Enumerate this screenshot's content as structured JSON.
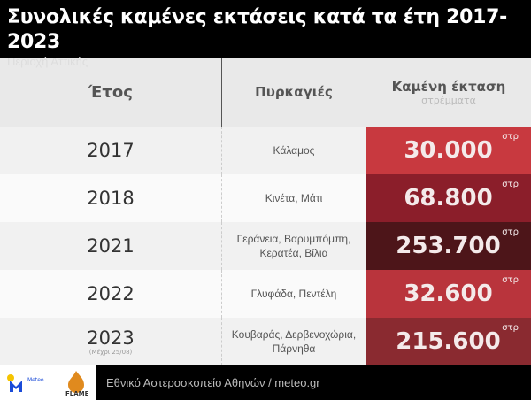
{
  "title": "Συνολικές καμένες εκτάσεις κατά τα έτη 2017-2023",
  "subtitle": "Περιοχή Αττικής",
  "headers": {
    "year": "Έτος",
    "fires": "Πυρκαγιές",
    "area": "Καμένη έκταση",
    "area_unit": "στρέμματα"
  },
  "unit_short": "στρ",
  "rows": [
    {
      "year": "2017",
      "note": "",
      "fires": "Κάλαμος",
      "area": "30.000",
      "color": "#c8393f"
    },
    {
      "year": "2018",
      "note": "",
      "fires": "Κινέτα, Μάτι",
      "area": "68.800",
      "color": "#8b1e2a"
    },
    {
      "year": "2021",
      "note": "",
      "fires": "Γεράνεια, Βαρυμπόμπη, Κερατέα, Βίλια",
      "area": "253.700",
      "color": "#4d1519"
    },
    {
      "year": "2022",
      "note": "",
      "fires": "Γλυφάδα, Πεντέλη",
      "area": "32.600",
      "color": "#b9343c"
    },
    {
      "year": "2023",
      "note": "(Μέχρι 25/08)",
      "fires": "Κουβαράς, Δερβενοχώρια, Πάρνηθα",
      "area": "215.600",
      "color": "#8a2a30"
    }
  ],
  "footer": {
    "source": "Εθνικό Αστεροσκοπείο Αθηνών / meteo.gr",
    "logos": [
      "Meteo",
      "FLAME"
    ]
  }
}
